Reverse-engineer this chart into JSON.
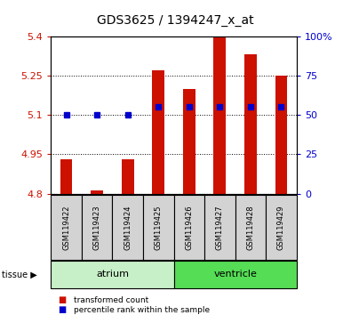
{
  "title": "GDS3625 / 1394247_x_at",
  "samples": [
    "GSM119422",
    "GSM119423",
    "GSM119424",
    "GSM119425",
    "GSM119426",
    "GSM119427",
    "GSM119428",
    "GSM119429"
  ],
  "red_values": [
    4.93,
    4.812,
    4.932,
    5.27,
    5.2,
    5.4,
    5.33,
    5.25
  ],
  "blue_pct": [
    50,
    50,
    50,
    55,
    55,
    55,
    55,
    55
  ],
  "y_min": 4.8,
  "y_max": 5.4,
  "y_ticks_left": [
    4.8,
    4.95,
    5.1,
    5.25,
    5.4
  ],
  "y_ticks_right": [
    0,
    25,
    50,
    75,
    100
  ],
  "tissue_groups": [
    {
      "label": "atrium",
      "start": 0,
      "end": 3,
      "color": "#c8f0c8"
    },
    {
      "label": "ventricle",
      "start": 4,
      "end": 7,
      "color": "#55dd55"
    }
  ],
  "bar_color": "#cc1100",
  "blue_color": "#0000cc",
  "bar_base": 4.8,
  "bar_width": 0.4,
  "legend_items": [
    {
      "label": "transformed count",
      "color": "#cc1100"
    },
    {
      "label": "percentile rank within the sample",
      "color": "#0000cc"
    }
  ],
  "bg_sample_box": "#d3d3d3",
  "title_fontsize": 10,
  "tick_fontsize": 8,
  "sample_fontsize": 6,
  "tissue_fontsize": 8
}
